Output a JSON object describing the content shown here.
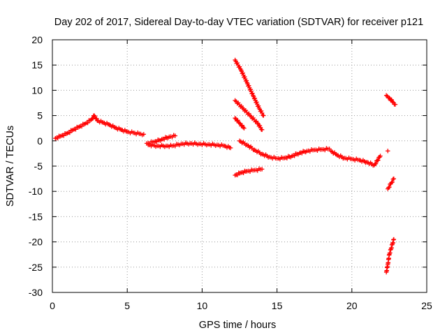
{
  "chart_data": {
    "type": "scatter",
    "title": "Day 202 of 2017, Sidereal Day-to-day VTEC variation (SDTVAR) for receiver p121",
    "xlabel": "GPS time / hours",
    "ylabel": "SDTVAR / TECUs",
    "xlim": [
      0,
      25
    ],
    "ylim": [
      -30,
      20
    ],
    "x_ticks": [
      0,
      5,
      10,
      15,
      20,
      25
    ],
    "y_ticks": [
      -30,
      -25,
      -20,
      -15,
      -10,
      -5,
      0,
      5,
      10,
      15,
      20
    ],
    "x_tick_labels": [
      "0",
      "5",
      "10",
      "15",
      "20",
      "25"
    ],
    "y_tick_labels": [
      "-30",
      "-25",
      "-20",
      "-15",
      "-10",
      "-5",
      "0",
      "5",
      "10",
      "15",
      "20"
    ],
    "grid": true,
    "marker": "plus",
    "color": "#ff0000",
    "series": [
      {
        "x": [
          0.2,
          0.6,
          1.0,
          1.4,
          1.8,
          2.2,
          2.6,
          2.8,
          3.0,
          3.4,
          3.8,
          4.2,
          4.6,
          5.0,
          5.4,
          5.8,
          6.1
        ],
        "y": [
          0.5,
          1.0,
          1.5,
          2.2,
          2.8,
          3.4,
          4.2,
          5.0,
          4.0,
          3.6,
          3.2,
          2.6,
          2.2,
          1.8,
          1.6,
          1.4,
          1.3
        ]
      },
      {
        "x": [
          6.3,
          6.8,
          7.3,
          7.8,
          8.2
        ],
        "y": [
          -0.5,
          -0.2,
          0.3,
          0.8,
          1.0
        ]
      },
      {
        "x": [
          6.4,
          7.0,
          7.6,
          8.0,
          8.6,
          9.2,
          9.8,
          10.4,
          11.0,
          11.5,
          11.9
        ],
        "y": [
          -0.8,
          -1.0,
          -1.0,
          -1.0,
          -0.6,
          -0.5,
          -0.6,
          -0.7,
          -0.8,
          -1.0,
          -1.4
        ]
      },
      {
        "x": [
          12.2,
          12.6,
          13.0,
          13.4,
          13.8,
          14.1
        ],
        "y": [
          16.0,
          14.0,
          11.5,
          9.0,
          6.5,
          5.0
        ]
      },
      {
        "x": [
          12.2,
          12.7,
          13.2,
          13.7,
          14.0
        ],
        "y": [
          8.0,
          6.5,
          5.0,
          3.5,
          2.2
        ]
      },
      {
        "x": [
          12.2,
          12.5,
          12.8
        ],
        "y": [
          4.5,
          3.5,
          2.5
        ]
      },
      {
        "x": [
          12.2,
          12.6,
          13.0,
          13.5,
          14.0
        ],
        "y": [
          -6.8,
          -6.3,
          -6.0,
          -5.8,
          -5.6
        ]
      },
      {
        "x": [
          12.5,
          13.0,
          13.5,
          14.0,
          14.5,
          15.0,
          15.5,
          16.0,
          16.5,
          17.0,
          17.5,
          18.0,
          18.5
        ],
        "y": [
          0.0,
          -0.8,
          -1.8,
          -2.6,
          -3.2,
          -3.5,
          -3.4,
          -3.0,
          -2.4,
          -2.0,
          -1.8,
          -1.7,
          -1.6
        ]
      },
      {
        "x": [
          18.6,
          19.0,
          19.5,
          20.0,
          20.5,
          21.0,
          21.5,
          21.9
        ],
        "y": [
          -2.0,
          -2.8,
          -3.4,
          -3.6,
          -3.8,
          -4.2,
          -4.8,
          -3.0
        ]
      },
      {
        "x": [
          22.4
        ],
        "y": [
          -2.0
        ]
      },
      {
        "x": [
          22.3,
          22.5,
          22.7,
          22.9
        ],
        "y": [
          9.0,
          8.5,
          7.8,
          7.2
        ]
      },
      {
        "x": [
          22.4,
          22.6,
          22.8
        ],
        "y": [
          -9.5,
          -8.5,
          -7.5
        ]
      },
      {
        "x": [
          22.3,
          22.4,
          22.5,
          22.6,
          22.7,
          22.8
        ],
        "y": [
          -26.0,
          -24.5,
          -22.5,
          -21.5,
          -20.5,
          -19.5
        ]
      }
    ]
  }
}
